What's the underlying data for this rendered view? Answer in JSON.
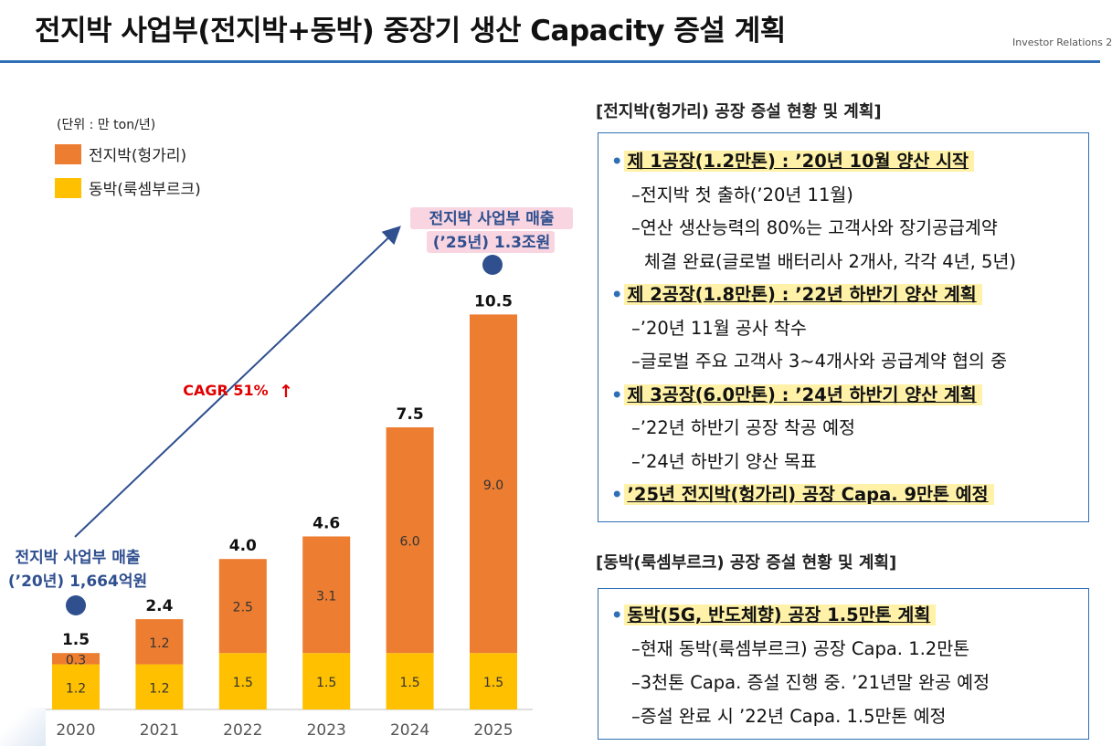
{
  "page": {
    "title": "전지박 사업부(전지박+동박) 중장기 생산 Capacity 증설 계획",
    "ir_label": "Investor Relations 2"
  },
  "chart_data": {
    "type": "bar",
    "stacked": true,
    "unit_label": "(단위 : 만 ton/년)",
    "categories": [
      "2020",
      "2021",
      "2022",
      "2023",
      "2024",
      "2025"
    ],
    "series": [
      {
        "name": "동박(룩셈부르크)",
        "color": "#ffc000",
        "values": [
          1.2,
          1.2,
          1.5,
          1.5,
          1.5,
          1.5
        ]
      },
      {
        "name": "전지박(헝가리)",
        "color": "#ed7d31",
        "values": [
          0.3,
          1.2,
          2.5,
          3.1,
          6.0,
          9.0
        ]
      }
    ],
    "total_labels": [
      "1.5",
      "2.4",
      "4.0",
      "4.6",
      "7.5",
      "10.5"
    ],
    "segment_labels": {
      "bottom": [
        "1.2",
        "1.2",
        "1.5",
        "1.5",
        "1.5",
        "1.5"
      ],
      "top": [
        "0.3",
        "1.2",
        "2.5",
        "3.1",
        "6.0",
        "9.0"
      ]
    },
    "ylim": [
      0,
      11
    ],
    "grid": false,
    "legend_position": "top-left",
    "annotations": {
      "start_label": [
        "전지박 사업부 매출",
        "(’20년) 1,664억원"
      ],
      "end_label": [
        "전지박 사업부 매출",
        "(’25년) 1.3조원"
      ],
      "cagr": "CAGR 51%",
      "cagr_arrow": "↑"
    }
  },
  "sections": {
    "hungary": {
      "title": "[전지박(헝가리) 공장 증설 현황 및 계획]",
      "lines": [
        {
          "text": "제 1공장(1.2만톤) : ’20년 10월 양산 시작",
          "main": true
        },
        {
          "text": "–전지박 첫 출하(’20년 11월)",
          "main": false
        },
        {
          "text": "–연산 생산능력의 80%는 고객사와 장기공급계약",
          "main": false
        },
        {
          "text": "체결 완료(글로벌 배터리사 2개사, 각각 4년, 5년)",
          "main": false
        },
        {
          "text": "제 2공장(1.8만톤) : ’22년 하반기 양산 계획",
          "main": true
        },
        {
          "text": "–’20년 11월 공사 착수",
          "main": false
        },
        {
          "text": "–글로벌 주요 고객사 3~4개사와 공급계약 협의 중",
          "main": false
        },
        {
          "text": "제 3공장(6.0만톤) : ’24년 하반기 양산 계획",
          "main": true
        },
        {
          "text": "–’22년 하반기 공장 착공 예정",
          "main": false
        },
        {
          "text": "–’24년 하반기 양산 목표",
          "main": false
        },
        {
          "text": "’25년 전지박(헝가리) 공장 Capa. 9만톤 예정",
          "main": true
        }
      ]
    },
    "luxembourg": {
      "title": "[동박(룩셈부르크) 공장 증설 현황 및 계획]",
      "lines": [
        {
          "text": "동박(5G, 반도체향) 공장 1.5만톤 계획",
          "main": true
        },
        {
          "text": "–현재 동박(룩셈부르크) 공장 Capa. 1.2만톤",
          "main": false
        },
        {
          "text": "–3천톤 Capa. 증설 진행 중. ’21년말 완공 예정",
          "main": false
        },
        {
          "text": "–증설 완료 시 ’22년 Capa. 1.5만톤 예정",
          "main": false
        }
      ]
    },
    "bullet": "•"
  },
  "colors": {
    "accent": "#2e6fb5",
    "annotation_text": "#2f4f8f",
    "annotation_fill": "#f8d5e0",
    "cagr": "#e00000",
    "highlight": "#fff2a8"
  }
}
